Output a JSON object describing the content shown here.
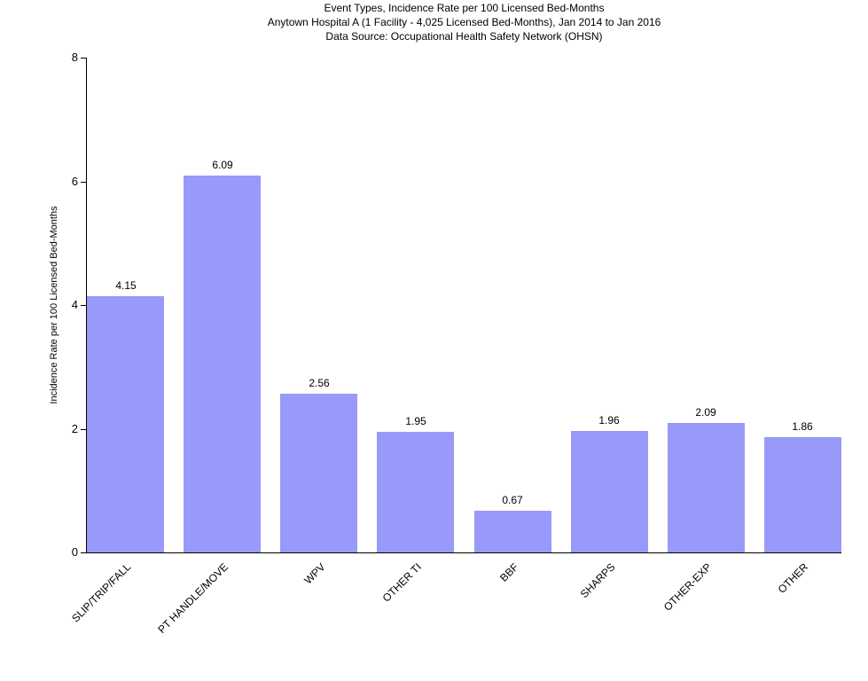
{
  "chart_data": {
    "type": "bar",
    "title": "Event Types, Incidence Rate per 100 Licensed Bed-Months",
    "subtitle": "Anytown Hospital A (1 Facility - 4,025 Licensed Bed-Months), Jan 2014 to Jan 2016",
    "source": "Data Source: Occupational Health Safety Network (OHSN)",
    "categories": [
      "SLIP/TRIP/FALL",
      "PT HANDLE/MOVE",
      "WPV",
      "OTHER TI",
      "BBF",
      "SHARPS",
      "OTHER-EXP",
      "OTHER"
    ],
    "values": [
      4.15,
      6.09,
      2.56,
      1.95,
      0.67,
      1.96,
      2.09,
      1.86
    ],
    "value_labels": [
      "4.15",
      "6.09",
      "2.56",
      "1.95",
      "0.67",
      "1.96",
      "2.09",
      "1.86"
    ],
    "xlabel": "",
    "ylabel": "Incidence Rate per 100 Licensed Bed-Months",
    "ylim": [
      0,
      8
    ],
    "yticks": [
      0,
      2,
      4,
      6,
      8
    ],
    "grid": false,
    "legend": "none",
    "bar_color": "#9999FA",
    "axis_color": "#000000",
    "text_color": "#000000",
    "x_label_rotation_deg": 45
  }
}
